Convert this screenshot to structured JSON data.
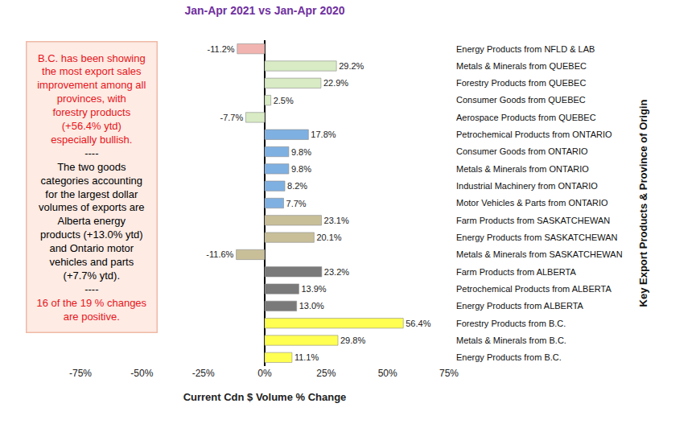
{
  "chart_data": {
    "type": "bar",
    "orientation": "horizontal",
    "title": "Jan-Apr 2021 vs Jan-Apr 2020",
    "x_label": "Current Cdn $ Volume % Change",
    "y_label": "Key Export Products & Province of Origin",
    "categories": [
      "Energy Products from NFLD & LAB",
      "Metals & Minerals from QUEBEC",
      "Forestry Products from QUEBEC",
      "Consumer Goods from QUEBEC",
      "Aerospace Products from QUEBEC",
      "Petrochemical Products from ONTARIO",
      "Consumer Goods from ONTARIO",
      "Metals & Minerals from ONTARIO",
      "Industrial Machinery from ONTARIO",
      "Motor Vehicles & Parts from ONTARIO",
      "Farm Products from SASKATCHEWAN",
      "Energy Products from SASKATCHEWAN",
      "Metals & Minerals from SASKATCHEWAN",
      "Farm Products from ALBERTA",
      "Petrochemical Products from ALBERTA",
      "Energy Products from ALBERTA",
      "Forestry Products from B.C.",
      "Metals & Minerals from B.C.",
      "Energy Products from B.C."
    ],
    "values": [
      -11.2,
      29.2,
      22.9,
      2.5,
      -7.7,
      17.8,
      9.8,
      9.8,
      8.2,
      7.7,
      23.1,
      20.1,
      -11.6,
      23.2,
      13.9,
      13.0,
      56.4,
      29.8,
      11.1
    ],
    "value_labels": [
      "-11.2%",
      "29.2%",
      "22.9%",
      "2.5%",
      "-7.7%",
      "17.8%",
      "9.8%",
      "9.8%",
      "8.2%",
      "7.7%",
      "23.1%",
      "20.1%",
      "-11.6%",
      "23.2%",
      "13.9%",
      "13.0%",
      "56.4%",
      "29.8%",
      "11.1%"
    ],
    "colors": [
      "#f2b4b0",
      "#d8ebc4",
      "#d8ebc4",
      "#d8ebc4",
      "#d8ebc4",
      "#7fb0e2",
      "#7fb0e2",
      "#7fb0e2",
      "#7fb0e2",
      "#7fb0e2",
      "#c8bf99",
      "#c8bf99",
      "#c8bf99",
      "#7a7a7a",
      "#7a7a7a",
      "#7a7a7a",
      "#ffff52",
      "#ffff52",
      "#ffff52"
    ],
    "data_labels": true,
    "grid": false,
    "xlim": [
      -75,
      75
    ],
    "xticks": [
      {
        "value": -75,
        "label": "-75%"
      },
      {
        "value": -50,
        "label": "-50%"
      },
      {
        "value": -25,
        "label": "-25%"
      },
      {
        "value": 0,
        "label": "0%"
      },
      {
        "value": 25,
        "label": "25%"
      },
      {
        "value": 50,
        "label": "50%"
      },
      {
        "value": 75,
        "label": "75%"
      }
    ],
    "annotations": [
      {
        "text": "B.C. has been showing the most export sales improvement among all provinces, with forestry products (+56.4% ytd) especially bullish.",
        "color": "#e8141a"
      },
      {
        "text": "----",
        "color": "#000000"
      },
      {
        "text": "The two goods categories accounting for the largest dollar volumes of exports are Alberta energy products (+13.0% ytd) and Ontario motor vehicles and parts (+7.7% ytd).",
        "color": "#000000"
      },
      {
        "text": "----",
        "color": "#000000"
      },
      {
        "text": "16 of the 19 % changes are positive.",
        "color": "#e8141a"
      }
    ]
  }
}
